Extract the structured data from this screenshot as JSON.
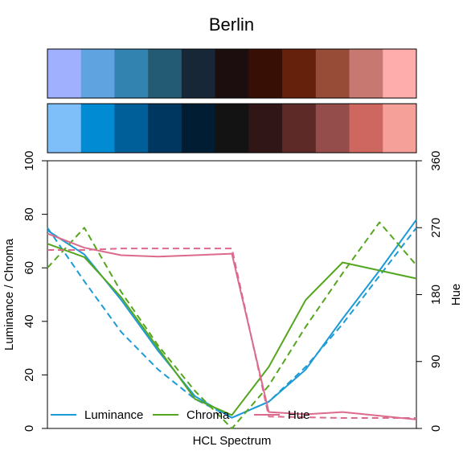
{
  "chart_data": {
    "type": "line",
    "title": "Berlin",
    "xlabel": "HCL Spectrum",
    "ylabel_left": "Luminance / Chroma",
    "ylabel_right": "Hue",
    "ylim_left": [
      0,
      100
    ],
    "ylim_right": [
      0,
      360
    ],
    "yticks_left": [
      "0",
      "20",
      "40",
      "60",
      "80",
      "100"
    ],
    "yticks_right": [
      "0",
      "90",
      "180",
      "270",
      "360"
    ],
    "grid": false,
    "legend_position": "bottom",
    "swatch_rows": [
      [
        "#A1AFFF",
        "#5FA4E0",
        "#3283B0",
        "#235B75",
        "#172737",
        "#1C0E0E",
        "#380F05",
        "#66210D",
        "#974C38",
        "#C77971",
        "#FFACAC"
      ],
      [
        "#7EBEF9",
        "#008BD3",
        "#005E99",
        "#003760",
        "#001D34",
        "#131313",
        "#301617",
        "#5D2A28",
        "#944D4A",
        "#CE6760",
        "#F6A09A"
      ]
    ],
    "x": [
      0,
      0.1,
      0.2,
      0.3,
      0.4,
      0.5,
      0.6,
      0.7,
      0.8,
      0.9,
      1.0
    ],
    "series": [
      {
        "name": "Luminance",
        "color": "#1E9BD7",
        "dash": false,
        "axis": "left",
        "values": [
          74,
          65,
          48,
          29,
          12,
          4,
          10,
          22,
          41,
          59,
          78
        ]
      },
      {
        "name": "Luminance",
        "color": "#1E9BD7",
        "dash": true,
        "axis": "left",
        "values": [
          75,
          55,
          36,
          22,
          11,
          4,
          10,
          23,
          39,
          57,
          75
        ]
      },
      {
        "name": "Chroma",
        "color": "#55A61F",
        "dash": false,
        "axis": "left",
        "values": [
          69,
          64,
          49,
          30,
          11,
          5,
          23,
          48,
          62,
          59,
          56
        ]
      },
      {
        "name": "Chroma",
        "color": "#55A61F",
        "dash": true,
        "axis": "left",
        "values": [
          60,
          75,
          51,
          31,
          14,
          0,
          16,
          38,
          58,
          77,
          61
        ]
      },
      {
        "name": "Hue",
        "color": "#DB6A8C",
        "dash": false,
        "axis": "right",
        "values": [
          262,
          243,
          233,
          231,
          233,
          235,
          22,
          19,
          22,
          17,
          12
        ]
      },
      {
        "name": "Hue",
        "color": "#DB6A8C",
        "dash": true,
        "axis": "right",
        "values": [
          240,
          240,
          242,
          242,
          242,
          242,
          16,
          15,
          14,
          14,
          14
        ]
      }
    ],
    "legend": [
      "Luminance",
      "Chroma",
      "Hue"
    ]
  }
}
